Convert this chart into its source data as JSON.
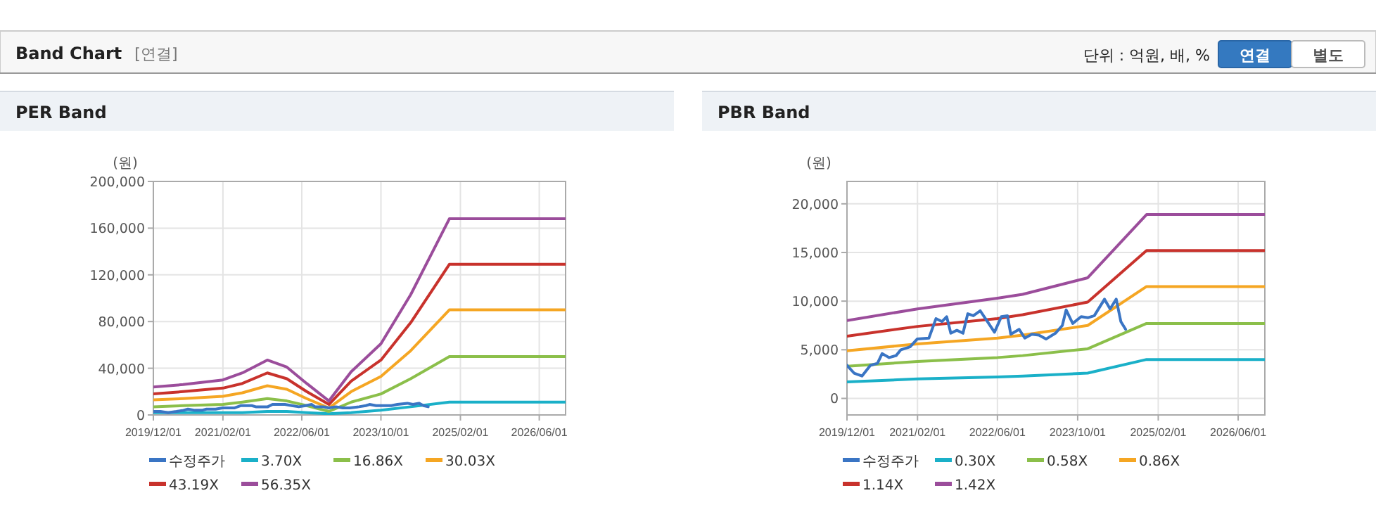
{
  "chart_data": [
    {
      "type": "other",
      "title": "Band Chart",
      "annotations": [
        "[연결]",
        "단위 : 억원, 배, %",
        "연결",
        "별도"
      ]
    },
    {
      "type": "line",
      "title": "PER Band",
      "ylabel": "(원)",
      "xlim": [
        "2019-12-01",
        "2026-11-10"
      ],
      "ylim": [
        0,
        200000
      ],
      "xticks": [
        {
          "value": "2019-12-01",
          "label": "2019/12/01"
        },
        {
          "value": "2021-02-01",
          "label": "2021/02/01"
        },
        {
          "value": "2022-06-01",
          "label": "2022/06/01"
        },
        {
          "value": "2023-10-01",
          "label": "2023/10/01"
        },
        {
          "value": "2025-02-01",
          "label": "2025/02/01"
        },
        {
          "value": "2026-06-01",
          "label": "2026/06/01"
        }
      ],
      "yticks": [
        0,
        {
          "value": 40000,
          "label": "40,000"
        },
        {
          "value": 80000,
          "label": "80,000"
        },
        {
          "value": 120000,
          "label": "120,000"
        },
        {
          "value": 160000,
          "label": "160,000"
        },
        {
          "value": 200000,
          "label": "200,000"
        }
      ],
      "grid": true,
      "legend": "bottom",
      "series": [
        {
          "name": "수정주가",
          "color": "#3a75c4",
          "x": [
            "2019-12-01",
            "2020-01-13",
            "2020-03-01",
            "2020-04-21",
            "2020-06-03",
            "2020-07-01",
            "2020-08-13",
            "2020-09-24",
            "2020-10-23",
            "2020-12-18",
            "2021-01-30",
            "2021-04-11",
            "2021-05-24",
            "2021-06-30",
            "2021-07-28",
            "2021-08-22",
            "2021-09-28",
            "2021-11-04",
            "2021-12-03",
            "2022-01-06",
            "2022-02-17",
            "2022-04-01",
            "2022-05-14",
            "2022-06-25",
            "2022-08-01",
            "2022-08-21",
            "2022-10-11",
            "2022-11-14",
            "2022-12-27",
            "2023-02-08",
            "2023-03-23",
            "2023-05-19",
            "2023-06-30",
            "2023-07-23",
            "2023-09-01",
            "2023-10-22",
            "2023-12-04",
            "2024-01-10",
            "2024-03-12",
            "2024-04-15",
            "2024-05-22",
            "2024-06-19",
            "2024-07-18"
          ],
          "values": [
            3000,
            3000,
            2000,
            3000,
            4000,
            5000,
            4000,
            4000,
            5000,
            5000,
            6000,
            6000,
            8000,
            8000,
            8000,
            7000,
            7000,
            7000,
            9000,
            9000,
            9000,
            8000,
            7000,
            8000,
            9000,
            7000,
            7000,
            6000,
            7000,
            6000,
            6000,
            7000,
            8000,
            9000,
            8000,
            8000,
            8000,
            9000,
            10000,
            9000,
            10000,
            8000,
            7000
          ]
        },
        {
          "name": "3.70X",
          "color": "#1ab0c8",
          "x": [
            "2019-12-01",
            "2020-06-01",
            "2021-02-01",
            "2021-06-01",
            "2021-11-01",
            "2022-03-01",
            "2022-07-01",
            "2022-11-15",
            "2023-04-01",
            "2023-10-01",
            "2024-04-01",
            "2024-11-25",
            "2026-11-10"
          ],
          "values": [
            2000,
            2000,
            2000,
            2000,
            3000,
            3000,
            2000,
            1000,
            2000,
            4000,
            7000,
            11000,
            11000
          ]
        },
        {
          "name": "16.86X",
          "color": "#8bbf4a",
          "x": [
            "2019-12-01",
            "2020-06-01",
            "2021-02-01",
            "2021-06-01",
            "2021-11-01",
            "2022-03-01",
            "2022-07-01",
            "2022-11-15",
            "2023-04-01",
            "2023-10-01",
            "2024-04-01",
            "2024-11-25",
            "2026-11-10"
          ],
          "values": [
            7000,
            8000,
            9000,
            11000,
            14000,
            12000,
            8000,
            3000,
            11000,
            18000,
            31000,
            50000,
            50000
          ]
        },
        {
          "name": "30.03X",
          "color": "#f5a623",
          "x": [
            "2019-12-01",
            "2020-06-01",
            "2021-02-01",
            "2021-06-01",
            "2021-11-01",
            "2022-03-01",
            "2022-07-01",
            "2022-11-15",
            "2023-04-01",
            "2023-10-01",
            "2024-04-01",
            "2024-11-25",
            "2026-11-10"
          ],
          "values": [
            13000,
            14000,
            16000,
            19000,
            25000,
            22000,
            14000,
            6000,
            20000,
            33000,
            55000,
            90000,
            90000
          ]
        },
        {
          "name": "43.19X",
          "color": "#c8322c",
          "x": [
            "2019-12-01",
            "2020-06-01",
            "2021-02-01",
            "2021-06-01",
            "2021-11-01",
            "2022-03-01",
            "2022-07-01",
            "2022-11-15",
            "2023-04-01",
            "2023-10-01",
            "2024-04-01",
            "2024-11-25",
            "2026-11-10"
          ],
          "values": [
            18000,
            20000,
            23000,
            27000,
            36000,
            31000,
            20000,
            9000,
            29000,
            47000,
            79000,
            129000,
            129000
          ]
        },
        {
          "name": "56.35X",
          "color": "#9b4d9b",
          "x": [
            "2019-12-01",
            "2020-06-01",
            "2021-02-01",
            "2021-06-01",
            "2021-11-01",
            "2022-03-01",
            "2022-07-01",
            "2022-11-15",
            "2023-04-01",
            "2023-10-01",
            "2024-04-01",
            "2024-11-25",
            "2026-11-10"
          ],
          "values": [
            24000,
            26000,
            30000,
            36000,
            47000,
            41000,
            27000,
            12000,
            37000,
            61000,
            103000,
            168000,
            168000
          ]
        }
      ]
    },
    {
      "type": "line",
      "title": "PBR Band",
      "ylabel": "(원)",
      "xlim": [
        "2019-12-01",
        "2026-11-10"
      ],
      "ylim": [
        -1700,
        22300
      ],
      "xticks": [
        {
          "value": "2019-12-01",
          "label": "2019/12/01"
        },
        {
          "value": "2021-02-01",
          "label": "2021/02/01"
        },
        {
          "value": "2022-06-01",
          "label": "2022/06/01"
        },
        {
          "value": "2023-10-01",
          "label": "2023/10/01"
        },
        {
          "value": "2025-02-01",
          "label": "2025/02/01"
        },
        {
          "value": "2026-06-01",
          "label": "2026/06/01"
        }
      ],
      "yticks": [
        0,
        {
          "value": 5000,
          "label": "5,000"
        },
        {
          "value": 10000,
          "label": "10,000"
        },
        {
          "value": 15000,
          "label": "15,000"
        },
        {
          "value": 20000,
          "label": "20,000"
        }
      ],
      "grid": true,
      "legend": "bottom",
      "series": [
        {
          "name": "수정주가",
          "color": "#3a75c4",
          "x": [
            "2019-12-01",
            "2020-01-13",
            "2020-03-01",
            "2020-04-21",
            "2020-06-03",
            "2020-07-01",
            "2020-08-13",
            "2020-09-24",
            "2020-10-23",
            "2020-12-18",
            "2021-01-30",
            "2021-04-11",
            "2021-05-24",
            "2021-06-30",
            "2021-07-28",
            "2021-08-22",
            "2021-09-28",
            "2021-11-04",
            "2021-12-03",
            "2022-01-06",
            "2022-02-17",
            "2022-04-01",
            "2022-05-14",
            "2022-06-25",
            "2022-08-01",
            "2022-08-21",
            "2022-10-11",
            "2022-11-14",
            "2022-12-27",
            "2023-02-08",
            "2023-03-23",
            "2023-05-19",
            "2023-06-30",
            "2023-07-23",
            "2023-09-01",
            "2023-10-22",
            "2023-12-04",
            "2024-01-10",
            "2024-03-12",
            "2024-04-15",
            "2024-05-22",
            "2024-06-19",
            "2024-07-18"
          ],
          "values": [
            3400,
            2600,
            2300,
            3400,
            3600,
            4600,
            4200,
            4400,
            5000,
            5300,
            6100,
            6200,
            8200,
            7900,
            8400,
            6700,
            7000,
            6700,
            8700,
            8500,
            9000,
            7900,
            6800,
            8400,
            8500,
            6600,
            7100,
            6200,
            6600,
            6500,
            6100,
            6700,
            7500,
            9100,
            7700,
            8400,
            8300,
            8500,
            10200,
            9200,
            10200,
            7900,
            7100
          ]
        },
        {
          "name": "0.30X",
          "color": "#1ab0c8",
          "x": [
            "2019-12-01",
            "2021-02-01",
            "2022-06-01",
            "2022-11-01",
            "2023-12-01",
            "2024-11-22",
            "2026-11-10"
          ],
          "values": [
            1700,
            2000,
            2200,
            2300,
            2600,
            4000,
            4000
          ]
        },
        {
          "name": "0.58X",
          "color": "#8bbf4a",
          "x": [
            "2019-12-01",
            "2021-02-01",
            "2022-06-01",
            "2022-11-01",
            "2023-12-01",
            "2024-11-22",
            "2026-11-10"
          ],
          "values": [
            3300,
            3800,
            4200,
            4400,
            5100,
            7700,
            7700
          ]
        },
        {
          "name": "0.86X",
          "color": "#f5a623",
          "x": [
            "2019-12-01",
            "2021-02-01",
            "2022-06-01",
            "2022-11-01",
            "2023-12-01",
            "2024-11-22",
            "2026-11-10"
          ],
          "values": [
            4900,
            5600,
            6200,
            6500,
            7500,
            11500,
            11500
          ]
        },
        {
          "name": "1.14X",
          "color": "#c8322c",
          "x": [
            "2019-12-01",
            "2021-02-01",
            "2022-06-01",
            "2022-11-01",
            "2023-12-01",
            "2024-11-22",
            "2026-11-10"
          ],
          "values": [
            6400,
            7400,
            8200,
            8600,
            9900,
            15200,
            15200
          ]
        },
        {
          "name": "1.42X",
          "color": "#9b4d9b",
          "x": [
            "2019-12-01",
            "2021-02-01",
            "2022-06-01",
            "2022-11-01",
            "2023-12-01",
            "2024-11-22",
            "2026-11-10"
          ],
          "values": [
            8000,
            9200,
            10300,
            10700,
            12400,
            18900,
            18900
          ]
        }
      ]
    }
  ]
}
